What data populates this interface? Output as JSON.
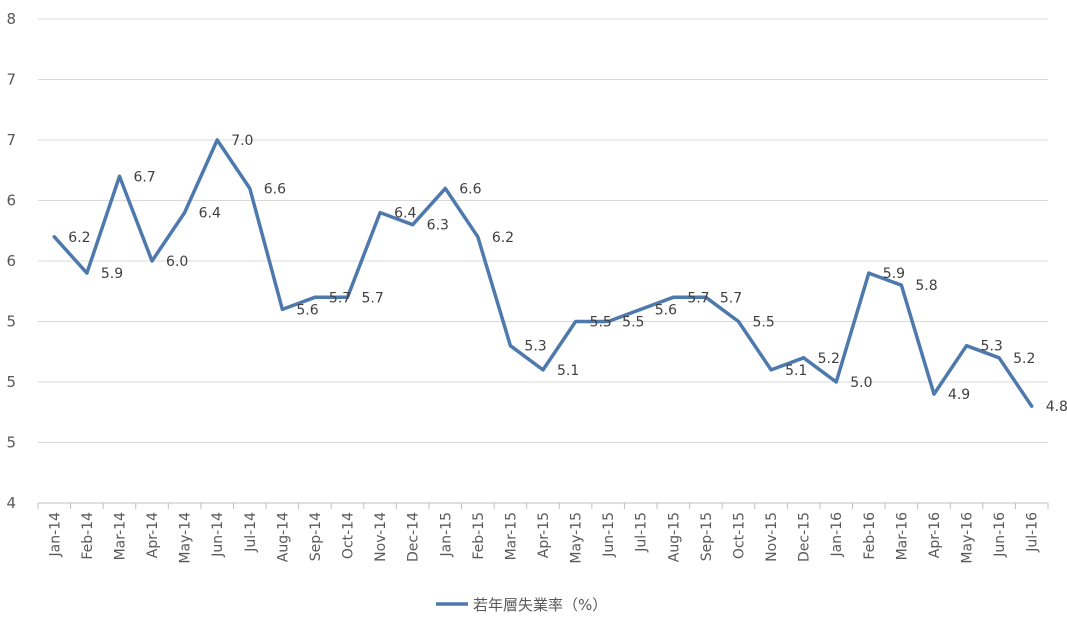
{
  "chart_data": {
    "type": "line",
    "title": "",
    "xlabel": "",
    "ylabel": "",
    "ylim": [
      4,
      8
    ],
    "y_tick_labels": [
      "4",
      "5",
      "5",
      "5",
      "6",
      "6",
      "7",
      "7",
      "8"
    ],
    "grid": true,
    "legend_position": "bottom",
    "categories": [
      "Jan-14",
      "Feb-14",
      "Mar-14",
      "Apr-14",
      "May-14",
      "Jun-14",
      "Jul-14",
      "Aug-14",
      "Sep-14",
      "Oct-14",
      "Nov-14",
      "Dec-14",
      "Jan-15",
      "Feb-15",
      "Mar-15",
      "Apr-15",
      "May-15",
      "Jun-15",
      "Jul-15",
      "Aug-15",
      "Sep-15",
      "Oct-15",
      "Nov-15",
      "Dec-15",
      "Jan-16",
      "Feb-16",
      "Mar-16",
      "Apr-16",
      "May-16",
      "Jun-16",
      "Jul-16"
    ],
    "series": [
      {
        "name": "若年層失業率（%）",
        "color": "#4e79ad",
        "values": [
          6.2,
          5.9,
          6.7,
          6.0,
          6.4,
          7.0,
          6.6,
          5.6,
          5.7,
          5.7,
          6.4,
          6.3,
          6.6,
          6.2,
          5.3,
          5.1,
          5.5,
          5.5,
          5.6,
          5.7,
          5.7,
          5.5,
          5.1,
          5.2,
          5.0,
          5.9,
          5.8,
          4.9,
          5.3,
          5.2,
          4.8
        ],
        "data_labels": [
          "6.2",
          "5.9",
          "6.7",
          "6.0",
          "6.4",
          "7.0",
          "6.6",
          "5.6",
          "5.7",
          "5.7",
          "6.4",
          "6.3",
          "6.6",
          "6.2",
          "5.3",
          "5.1",
          "5.5",
          "5.5",
          "5.6",
          "5.7",
          "5.7",
          "5.5",
          "5.1",
          "5.2",
          "5.0",
          "5.9",
          "5.8",
          "4.9",
          "5.3",
          "5.2",
          "4.8"
        ]
      }
    ]
  }
}
